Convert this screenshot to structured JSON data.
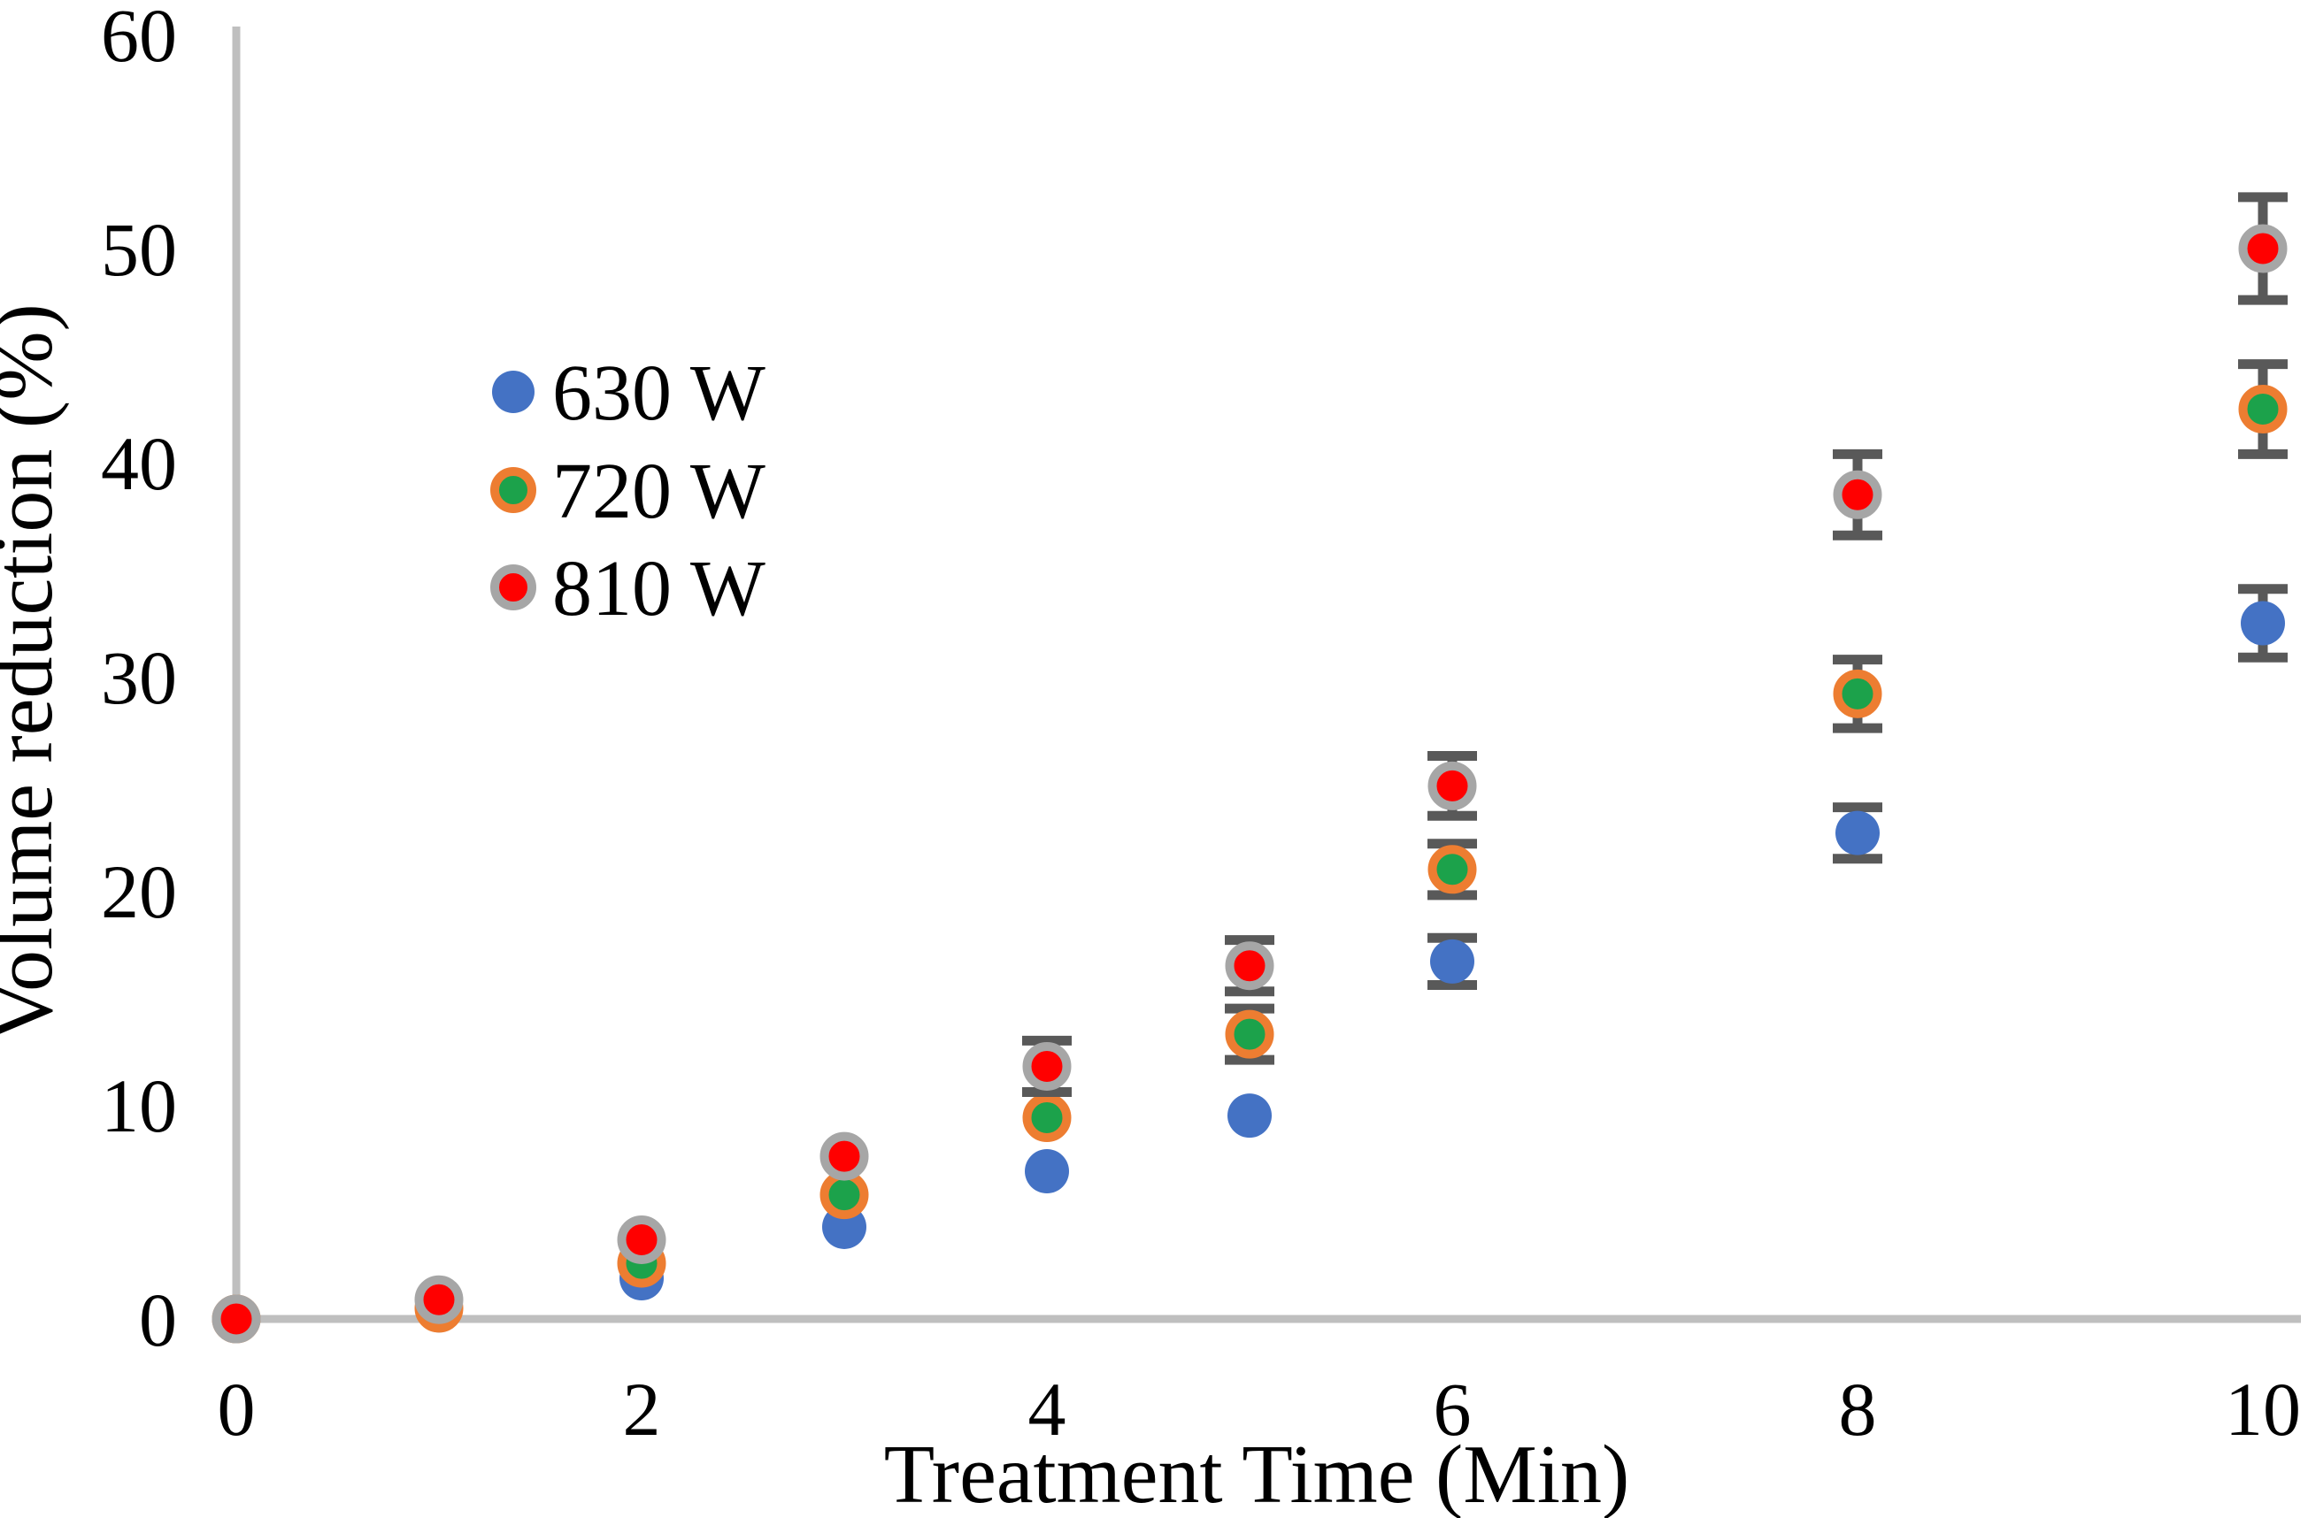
{
  "figure": {
    "background_color": "#FFFFFF",
    "axis_line_color": "#BFBFBF",
    "error_bar_color": "#595959",
    "text_color": "#000000"
  },
  "chart_data": {
    "type": "scatter",
    "title": "",
    "xlabel": "Treatment Time (Min)",
    "ylabel": "Volume reduction (%)",
    "xlim": [
      0,
      10
    ],
    "ylim": [
      0,
      60
    ],
    "x_ticks": [
      0,
      2,
      4,
      6,
      8,
      10
    ],
    "y_ticks": [
      0,
      10,
      20,
      30,
      40,
      50,
      60
    ],
    "grid": false,
    "legend_position": "inside-upper-left",
    "x": [
      0,
      1,
      2,
      3,
      4,
      5,
      6,
      8,
      10
    ],
    "series": [
      {
        "name": "630 W",
        "marker_fill": "#4472C4",
        "marker_outline": "",
        "values": [
          0,
          0.4,
          1.9,
          4.3,
          6.9,
          9.5,
          16.7,
          22.7,
          32.5
        ],
        "errors": [
          0,
          0,
          0,
          0,
          0,
          0,
          1.1,
          1.2,
          1.6
        ]
      },
      {
        "name": "720 W",
        "marker_fill": "#1CA24B",
        "marker_outline": "#ED7D31",
        "values": [
          0,
          0.5,
          2.6,
          5.8,
          9.4,
          13.3,
          21.0,
          29.2,
          42.5
        ],
        "errors": [
          0,
          0,
          0,
          0,
          0,
          1.2,
          1.2,
          1.6,
          2.1
        ]
      },
      {
        "name": "810 W",
        "marker_fill": "#FF0000",
        "marker_outline": "#A6A6A6",
        "values": [
          0,
          0.9,
          3.7,
          7.6,
          11.8,
          16.5,
          24.9,
          38.5,
          50.0
        ],
        "errors": [
          0,
          0,
          0,
          0,
          1.2,
          1.2,
          1.4,
          1.9,
          2.4
        ]
      }
    ]
  }
}
